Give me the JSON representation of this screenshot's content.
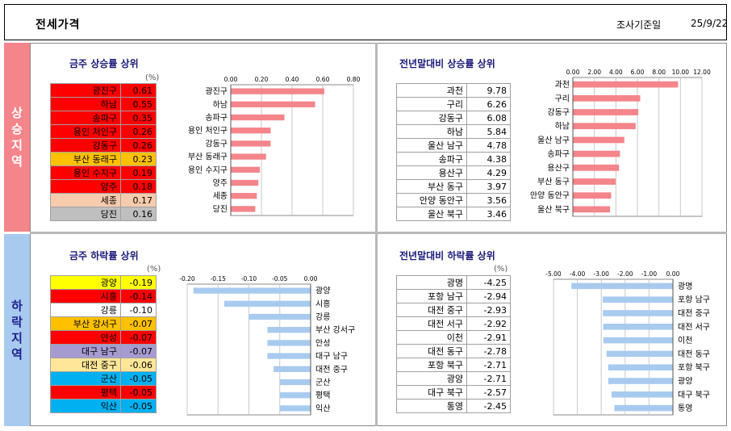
{
  "header": {
    "title": "전세가격",
    "survey_label": "조사기준일",
    "date": "25/9/22"
  },
  "sections": {
    "up": "상승지역",
    "down": "하락지역"
  },
  "colors": {
    "red": "#ff0000",
    "yellow": "#ffff00",
    "orange": "#ffc000",
    "peach": "#f8cbad",
    "gray": "#bfbfbf",
    "lavender": "#a69bd1",
    "tan": "#ffe699",
    "cyan": "#00b0f0",
    "white": "#ffffff",
    "bar_up": "#f4858a",
    "bar_down": "#a8caef"
  },
  "panels": {
    "weekly_up": {
      "title": "금주 상승률 상위",
      "unit": "(%)",
      "rows": [
        {
          "name": "광진구",
          "value": "0.61",
          "color": "red"
        },
        {
          "name": "하남",
          "value": "0.55",
          "color": "red"
        },
        {
          "name": "송파구",
          "value": "0.35",
          "color": "red"
        },
        {
          "name": "용인 처인구",
          "value": "0.26",
          "color": "red"
        },
        {
          "name": "강동구",
          "value": "0.26",
          "color": "red"
        },
        {
          "name": "부산 동래구",
          "value": "0.23",
          "color": "orange"
        },
        {
          "name": "용인 수지구",
          "value": "0.19",
          "color": "red"
        },
        {
          "name": "양주",
          "value": "0.18",
          "color": "red"
        },
        {
          "name": "세종",
          "value": "0.17",
          "color": "peach"
        },
        {
          "name": "당진",
          "value": "0.16",
          "color": "gray"
        }
      ]
    },
    "ytd_up": {
      "title": "전년말대비 상승률 상위",
      "rows": [
        {
          "name": "과천",
          "value": "9.78"
        },
        {
          "name": "구리",
          "value": "6.26"
        },
        {
          "name": "강동구",
          "value": "6.08"
        },
        {
          "name": "하남",
          "value": "5.84"
        },
        {
          "name": "울산 남구",
          "value": "4.78"
        },
        {
          "name": "송파구",
          "value": "4.38"
        },
        {
          "name": "용산구",
          "value": "4.29"
        },
        {
          "name": "부산 동구",
          "value": "3.97"
        },
        {
          "name": "안양 동안구",
          "value": "3.56"
        },
        {
          "name": "울산 북구",
          "value": "3.46"
        }
      ]
    },
    "weekly_down": {
      "title": "금주 하락률 상위",
      "unit": "(%)",
      "rows": [
        {
          "name": "광양",
          "value": "-0.19",
          "color": "yellow"
        },
        {
          "name": "시흥",
          "value": "-0.14",
          "color": "red"
        },
        {
          "name": "강릉",
          "value": "-0.10",
          "color": "white"
        },
        {
          "name": "부산 강서구",
          "value": "-0.07",
          "color": "orange"
        },
        {
          "name": "안성",
          "value": "-0.07",
          "color": "red"
        },
        {
          "name": "대구 남구",
          "value": "-0.07",
          "color": "lavender"
        },
        {
          "name": "대전 중구",
          "value": "-0.06",
          "color": "tan"
        },
        {
          "name": "군산",
          "value": "-0.05",
          "color": "cyan"
        },
        {
          "name": "평택",
          "value": "-0.05",
          "color": "red"
        },
        {
          "name": "익산",
          "value": "-0.05",
          "color": "cyan"
        }
      ]
    },
    "ytd_down": {
      "title": "전년말대비 하락률 상위",
      "unit": "(%)",
      "rows": [
        {
          "name": "광명",
          "value": "-4.25"
        },
        {
          "name": "포항 남구",
          "value": "-2.94"
        },
        {
          "name": "대전 중구",
          "value": "-2.93"
        },
        {
          "name": "대전 서구",
          "value": "-2.92"
        },
        {
          "name": "이천",
          "value": "-2.91"
        },
        {
          "name": "대전 동구",
          "value": "-2.78"
        },
        {
          "name": "포항 북구",
          "value": "-2.71"
        },
        {
          "name": "광양",
          "value": "-2.71"
        },
        {
          "name": "대구 북구",
          "value": "-2.57"
        },
        {
          "name": "통영",
          "value": "-2.45"
        }
      ]
    }
  },
  "chart_data": [
    {
      "type": "bar",
      "orientation": "horizontal",
      "categories": [
        "광진구",
        "하남",
        "송파구",
        "용인 처인구",
        "강동구",
        "부산 동래구",
        "용인 수지구",
        "양주",
        "세종",
        "당진"
      ],
      "values": [
        0.61,
        0.55,
        0.35,
        0.26,
        0.26,
        0.23,
        0.19,
        0.18,
        0.17,
        0.16
      ],
      "xlim": [
        0,
        0.8
      ],
      "ticks": [
        "0.00",
        "0.20",
        "0.40",
        "0.60",
        "0.80"
      ],
      "grid": true,
      "color": "#f4858a"
    },
    {
      "type": "bar",
      "orientation": "horizontal",
      "categories": [
        "과천",
        "구리",
        "강동구",
        "하남",
        "울산 남구",
        "송파구",
        "용산구",
        "부산 동구",
        "안양 동안구",
        "울산 북구"
      ],
      "values": [
        9.78,
        6.26,
        6.08,
        5.84,
        4.78,
        4.38,
        4.29,
        3.97,
        3.56,
        3.46
      ],
      "xlim": [
        0,
        12
      ],
      "ticks": [
        "0.00",
        "2.00",
        "4.00",
        "6.00",
        "8.00",
        "10.00",
        "12.00"
      ],
      "grid": true,
      "color": "#f4858a"
    },
    {
      "type": "bar",
      "orientation": "horizontal",
      "categories": [
        "광양",
        "시흥",
        "강릉",
        "부산 강서구",
        "안성",
        "대구 남구",
        "대전 중구",
        "군산",
        "평택",
        "익산"
      ],
      "values": [
        -0.19,
        -0.14,
        -0.1,
        -0.07,
        -0.07,
        -0.07,
        -0.06,
        -0.05,
        -0.05,
        -0.05
      ],
      "xlim": [
        -0.2,
        0
      ],
      "ticks": [
        "-0.20",
        "-0.15",
        "-0.10",
        "-0.05",
        "0.00"
      ],
      "grid": true,
      "color": "#a8caef"
    },
    {
      "type": "bar",
      "orientation": "horizontal",
      "categories": [
        "광명",
        "포항 남구",
        "대전 중구",
        "대전 서구",
        "이천",
        "대전 동구",
        "포항 북구",
        "광양",
        "대구 북구",
        "통영"
      ],
      "values": [
        -4.25,
        -2.94,
        -2.93,
        -2.92,
        -2.91,
        -2.78,
        -2.71,
        -2.71,
        -2.57,
        -2.45
      ],
      "xlim": [
        -5,
        0
      ],
      "ticks": [
        "-5.00",
        "-4.00",
        "-3.00",
        "-2.00",
        "-1.00",
        "0.00"
      ],
      "grid": true,
      "color": "#a8caef"
    }
  ]
}
